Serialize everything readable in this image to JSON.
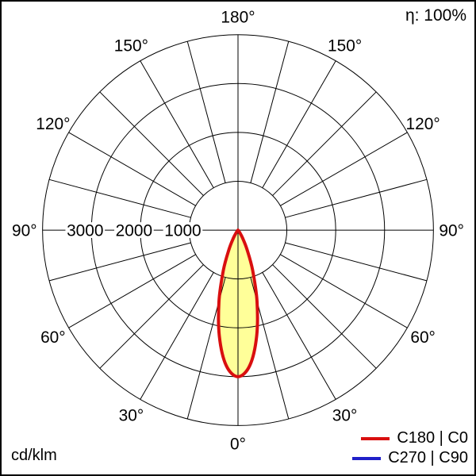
{
  "header": {
    "efficiency": "η: 100%"
  },
  "footer": {
    "unit": "cd/klm"
  },
  "legend": {
    "items": [
      {
        "label": "C180 | C0",
        "color": "#d90f0f"
      },
      {
        "label": "C270 | C90",
        "color": "#2020c8"
      }
    ]
  },
  "chart_data": {
    "type": "polar",
    "subtype": "luminous-intensity-distribution",
    "units": "cd/klm",
    "efficiency_eta": "100%",
    "angle_tick_step_deg": 15,
    "grid_color": "#000000",
    "r_axis": {
      "max": 4000,
      "ring_values": [
        1000,
        2000,
        3000,
        4000
      ],
      "labeled_ticks": [
        3000,
        2000,
        1000
      ]
    },
    "angle_labels": [
      {
        "label": "180°",
        "gamma": 180,
        "side": 0
      },
      {
        "label": "150°",
        "gamma": 150,
        "side": -1
      },
      {
        "label": "150°",
        "gamma": 150,
        "side": 1
      },
      {
        "label": "120°",
        "gamma": 120,
        "side": -1
      },
      {
        "label": "120°",
        "gamma": 120,
        "side": 1
      },
      {
        "label": "90°",
        "gamma": 90,
        "side": -1
      },
      {
        "label": "90°",
        "gamma": 90,
        "side": 1
      },
      {
        "label": "60°",
        "gamma": 60,
        "side": -1
      },
      {
        "label": "60°",
        "gamma": 60,
        "side": 1
      },
      {
        "label": "30°",
        "gamma": 30,
        "side": -1
      },
      {
        "label": "30°",
        "gamma": 30,
        "side": 1
      },
      {
        "label": "0°",
        "gamma": 0,
        "side": 0
      }
    ],
    "series": [
      {
        "name": "C180 | C0",
        "color": "#d90f0f",
        "fill": "#ffff99",
        "visible": true,
        "peak_intensity_cd_klm": 3000,
        "gamma_deg": [
          -50,
          -45,
          -40,
          -35,
          -30,
          -25,
          -20,
          -15,
          -10,
          -5,
          0,
          5,
          10,
          15,
          20,
          25,
          30,
          35,
          40,
          45,
          50
        ],
        "intensity_cd_klm": [
          0,
          5,
          20,
          70,
          190,
          440,
          875,
          1500,
          2200,
          2780,
          3000,
          2780,
          2200,
          1500,
          875,
          440,
          190,
          70,
          20,
          5,
          0
        ]
      },
      {
        "name": "C270 | C90",
        "color": "#2020c8",
        "fill": null,
        "visible": false,
        "gamma_deg": [],
        "intensity_cd_klm": []
      }
    ]
  }
}
